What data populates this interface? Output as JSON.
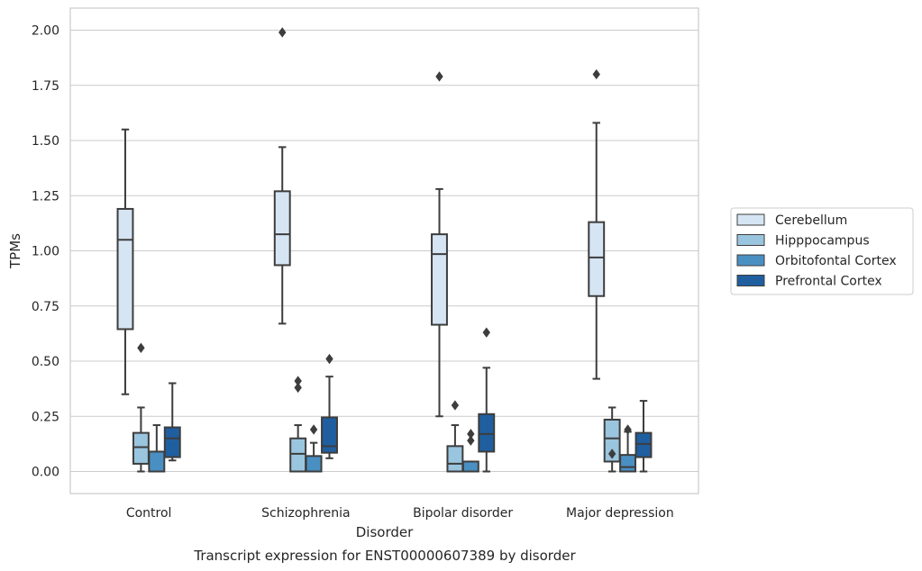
{
  "chart_data": {
    "type": "boxplot",
    "title": "",
    "caption": "Transcript expression for ENST00000607389 by disorder",
    "xlabel": "Disorder",
    "ylabel": "TPMs",
    "ylim": [
      -0.1,
      2.1
    ],
    "yticks": [
      "0.00",
      "0.25",
      "0.50",
      "0.75",
      "1.00",
      "1.25",
      "1.50",
      "1.75",
      "2.00"
    ],
    "grid": "horizontal",
    "legend_position": "right",
    "categories": [
      "Control",
      "Schizophrenia",
      "Bipolar disorder",
      "Major depression"
    ],
    "series": [
      {
        "name": "Cerebellum",
        "color": "#d6e5f4",
        "boxes": [
          {
            "whislo": 0.35,
            "q1": 0.645,
            "med": 1.05,
            "q3": 1.19,
            "whishi": 1.55,
            "fliers": []
          },
          {
            "whislo": 0.67,
            "q1": 0.935,
            "med": 1.075,
            "q3": 1.27,
            "whishi": 1.47,
            "fliers": [
              1.99
            ]
          },
          {
            "whislo": 0.25,
            "q1": 0.665,
            "med": 0.985,
            "q3": 1.075,
            "whishi": 1.28,
            "fliers": [
              1.79
            ]
          },
          {
            "whislo": 0.42,
            "q1": 0.795,
            "med": 0.97,
            "q3": 1.13,
            "whishi": 1.58,
            "fliers": [
              1.8
            ]
          }
        ]
      },
      {
        "name": "Hipppocampus",
        "color": "#9ac5de",
        "boxes": [
          {
            "whislo": 0.0,
            "q1": 0.035,
            "med": 0.11,
            "q3": 0.175,
            "whishi": 0.29,
            "fliers": [
              0.56
            ]
          },
          {
            "whislo": 0.0,
            "q1": 0.0,
            "med": 0.08,
            "q3": 0.15,
            "whishi": 0.21,
            "fliers": [
              0.38,
              0.41
            ]
          },
          {
            "whislo": 0.0,
            "q1": 0.0,
            "med": 0.035,
            "q3": 0.115,
            "whishi": 0.21,
            "fliers": [
              0.3
            ]
          },
          {
            "whislo": 0.0,
            "q1": 0.045,
            "med": 0.15,
            "q3": 0.235,
            "whishi": 0.29,
            "fliers": [
              0.08
            ]
          }
        ]
      },
      {
        "name": "Orbitofontal Cortex",
        "color": "#4a8fc2",
        "boxes": [
          {
            "whislo": 0.0,
            "q1": 0.0,
            "med": 0.0,
            "q3": 0.09,
            "whishi": 0.21,
            "fliers": []
          },
          {
            "whislo": 0.0,
            "q1": 0.0,
            "med": 0.0,
            "q3": 0.07,
            "whishi": 0.13,
            "fliers": [
              0.19
            ]
          },
          {
            "whislo": 0.0,
            "q1": 0.0,
            "med": 0.0,
            "q3": 0.045,
            "whishi": 0.045,
            "fliers": [
              0.14,
              0.17
            ]
          },
          {
            "whislo": 0.0,
            "q1": 0.0,
            "med": 0.02,
            "q3": 0.075,
            "whishi": 0.18,
            "fliers": [
              0.19
            ]
          }
        ]
      },
      {
        "name": "Prefrontal Cortex",
        "color": "#1f5fa0",
        "boxes": [
          {
            "whislo": 0.05,
            "q1": 0.065,
            "med": 0.15,
            "q3": 0.2,
            "whishi": 0.4,
            "fliers": []
          },
          {
            "whislo": 0.06,
            "q1": 0.085,
            "med": 0.115,
            "q3": 0.245,
            "whishi": 0.43,
            "fliers": [
              0.51
            ]
          },
          {
            "whislo": 0.0,
            "q1": 0.09,
            "med": 0.17,
            "q3": 0.26,
            "whishi": 0.47,
            "fliers": [
              0.63
            ]
          },
          {
            "whislo": 0.0,
            "q1": 0.065,
            "med": 0.125,
            "q3": 0.175,
            "whishi": 0.32,
            "fliers": []
          }
        ]
      }
    ]
  }
}
